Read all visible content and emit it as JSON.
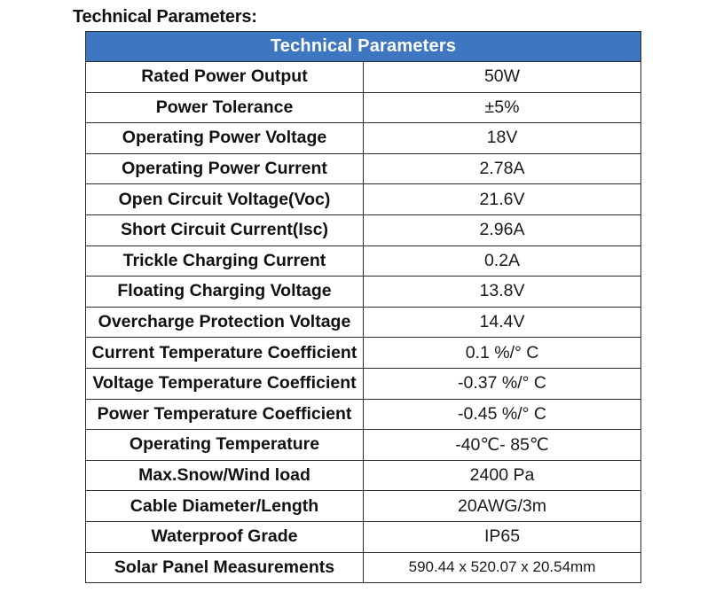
{
  "heading": "Technical Parameters:",
  "table": {
    "title": "Technical Parameters",
    "header_color": "#3e77c1",
    "rows": [
      {
        "name": "Rated Power Output",
        "value": "50W"
      },
      {
        "name": "Power Tolerance",
        "value": "±5%"
      },
      {
        "name": "Operating Power Voltage",
        "value": "18V"
      },
      {
        "name": "Operating Power Current",
        "value": "2.78A"
      },
      {
        "name": "Open Circuit Voltage(Voc)",
        "value": "21.6V"
      },
      {
        "name": "Short Circuit Current(Isc)",
        "value": "2.96A"
      },
      {
        "name": "Trickle Charging Current",
        "value": "0.2A"
      },
      {
        "name": "Floating Charging Voltage",
        "value": "13.8V"
      },
      {
        "name": "Overcharge Protection Voltage",
        "value": "14.4V"
      },
      {
        "name": "Current Temperature Coefficient",
        "value": "0.1 %/°  C"
      },
      {
        "name": "Voltage Temperature Coefficient",
        "value": "-0.37 %/°  C"
      },
      {
        "name": "Power Temperature Coefficient",
        "value": "-0.45 %/°  C"
      },
      {
        "name": "Operating Temperature",
        "value": "-40℃- 85℃"
      },
      {
        "name": "Max.Snow/Wind load",
        "value": "2400 Pa"
      },
      {
        "name": "Cable Diameter/Length",
        "value": "20AWG/3m"
      },
      {
        "name": "Waterproof Grade",
        "value": "IP65"
      },
      {
        "name": "Solar Panel Measurements",
        "value": "590.44 x 520.07 x 20.54mm"
      }
    ]
  }
}
